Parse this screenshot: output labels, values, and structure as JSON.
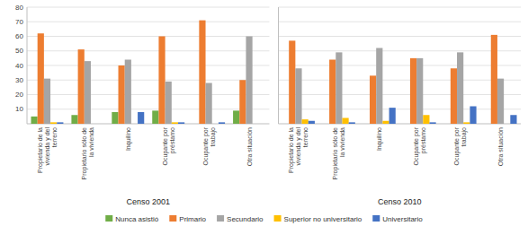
{
  "chart_data": [
    {
      "type": "bar",
      "xlabel": "Censo 2001",
      "categories": [
        "Propietario de la\nvivienda y del\nterreno",
        "Propietario sólo de\nla vivienda",
        "Inquilino",
        "Ocupante por\npréstamo",
        "Ocupante por\ntrabajo",
        "Otra situación"
      ],
      "series": [
        {
          "name": "Nunca asistió",
          "color": "#70AD47",
          "values": [
            5,
            6,
            8,
            9,
            0,
            9
          ]
        },
        {
          "name": "Primario",
          "color": "#ED7D31",
          "values": [
            62,
            51,
            40,
            60,
            71,
            30
          ]
        },
        {
          "name": "Secundario",
          "color": "#A5A5A5",
          "values": [
            31,
            43,
            44,
            29,
            28,
            60
          ]
        },
        {
          "name": "Superior no universitario",
          "color": "#FFC000",
          "values": [
            1,
            0,
            0,
            1,
            0,
            0
          ]
        },
        {
          "name": "Universitario",
          "color": "#4472C4",
          "values": [
            1,
            0,
            8,
            1,
            1,
            0
          ]
        }
      ],
      "ylim": [
        0,
        80
      ],
      "yticks": [
        10,
        20,
        30,
        40,
        50,
        60,
        70,
        80
      ],
      "grid": true,
      "legend": "bottom"
    },
    {
      "type": "bar",
      "xlabel": "Censo 2010",
      "categories": [
        "Propietario de la\nvivienda y del\nterreno",
        "Propietario sólo de\nla vivienda",
        "Inquilino",
        "Ocupante por\npréstamo",
        "Ocupante por\ntrabajo",
        "Otra situación"
      ],
      "series": [
        {
          "name": "Nunca asistió",
          "color": "#70AD47",
          "values": [
            0,
            0,
            0,
            0,
            0,
            0
          ]
        },
        {
          "name": "Primario",
          "color": "#ED7D31",
          "values": [
            57,
            44,
            33,
            45,
            38,
            61
          ]
        },
        {
          "name": "Secundario",
          "color": "#A5A5A5",
          "values": [
            38,
            49,
            52,
            45,
            49,
            31
          ]
        },
        {
          "name": "Superior no universitario",
          "color": "#FFC000",
          "values": [
            3,
            4,
            2,
            6,
            1,
            0
          ]
        },
        {
          "name": "Universitario",
          "color": "#4472C4",
          "values": [
            2,
            1,
            11,
            1,
            12,
            6
          ]
        }
      ],
      "ylim": [
        0,
        80
      ],
      "yticks": [
        10,
        20,
        30,
        40,
        50,
        60,
        70,
        80
      ],
      "grid": true,
      "tick_labels": "x"
    }
  ]
}
